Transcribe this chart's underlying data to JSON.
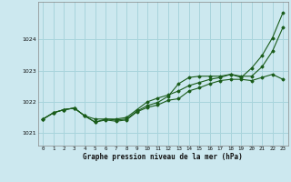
{
  "title": "Graphe pression niveau de la mer (hPa)",
  "background_color": "#cce8ef",
  "grid_color": "#a8d4dc",
  "line_color": "#1a5c1a",
  "xlim": [
    -0.5,
    23.5
  ],
  "ylim": [
    1020.6,
    1025.2
  ],
  "yticks": [
    1021,
    1022,
    1023,
    1024
  ],
  "xticks": [
    0,
    1,
    2,
    3,
    4,
    5,
    6,
    7,
    8,
    9,
    10,
    11,
    12,
    13,
    14,
    15,
    16,
    17,
    18,
    19,
    20,
    21,
    22,
    23
  ],
  "series": {
    "line1": [
      1021.45,
      1021.65,
      1021.75,
      1021.8,
      1021.55,
      1021.35,
      1021.42,
      1021.38,
      1021.42,
      1021.68,
      1021.82,
      1021.9,
      1022.05,
      1022.1,
      1022.35,
      1022.45,
      1022.58,
      1022.68,
      1022.72,
      1022.72,
      1022.68,
      1022.78,
      1022.88,
      1022.72
    ],
    "line2": [
      1021.45,
      1021.65,
      1021.75,
      1021.8,
      1021.55,
      1021.45,
      1021.45,
      1021.45,
      1021.5,
      1021.75,
      1022.0,
      1022.12,
      1022.22,
      1022.35,
      1022.52,
      1022.62,
      1022.72,
      1022.78,
      1022.88,
      1022.82,
      1022.82,
      1023.12,
      1023.62,
      1024.38
    ],
    "line3": [
      1021.45,
      1021.65,
      1021.75,
      1021.8,
      1021.55,
      1021.35,
      1021.45,
      1021.42,
      1021.45,
      1021.7,
      1021.88,
      1021.98,
      1022.18,
      1022.58,
      1022.78,
      1022.82,
      1022.82,
      1022.82,
      1022.88,
      1022.78,
      1023.08,
      1023.48,
      1024.05,
      1024.85
    ]
  }
}
